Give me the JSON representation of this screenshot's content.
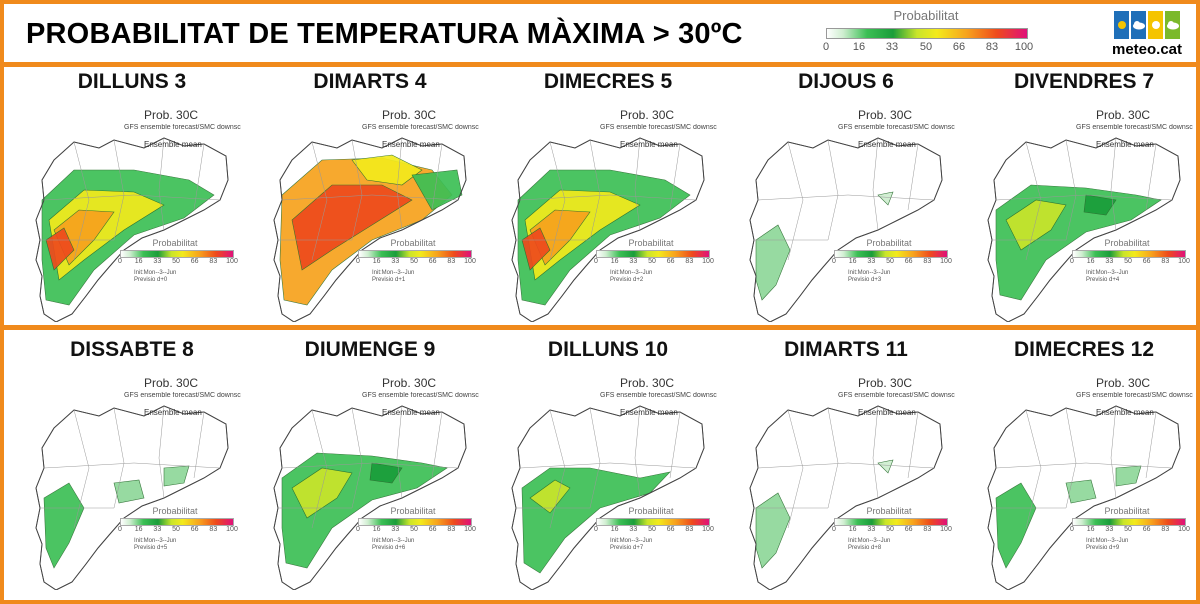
{
  "title": "PROBABILITAT DE TEMPERATURA MÀXIMA > 30ºC",
  "legend": {
    "title": "Probabilitat",
    "ticks": [
      "0",
      "16",
      "33",
      "50",
      "66",
      "83",
      "100"
    ]
  },
  "brand": {
    "name": "meteo.cat",
    "icons": [
      "sun-icon",
      "cloud-icon",
      "sun-icon",
      "cloud-icon"
    ]
  },
  "colors": {
    "accent": "#f08a1c",
    "p0": "#ffffff",
    "p16": "#cfeed0",
    "p33": "#3cbf55",
    "p50": "#f3ea1c",
    "p66": "#f7a21d",
    "p83": "#ee4a1c",
    "p100": "#e0107a"
  },
  "map_text": {
    "title": "Prob. 30C",
    "subtitle": "GFS ensemble forecast/SMC downsc",
    "mean": "Ensemble mean",
    "legend_title": "Probabilitat",
    "init": "Init:Mon--3--Jun"
  },
  "panels": [
    {
      "day": "DILLUNS 3",
      "lead": "Previsio d+0",
      "level": "high"
    },
    {
      "day": "DIMARTS 4",
      "lead": "Previsio d+1",
      "level": "very-high"
    },
    {
      "day": "DIMECRES 5",
      "lead": "Previsio d+2",
      "level": "high"
    },
    {
      "day": "DIJOUS 6",
      "lead": "Previsio d+3",
      "level": "very-low"
    },
    {
      "day": "DIVENDRES 7",
      "lead": "Previsio d+4",
      "level": "medium"
    },
    {
      "day": "DISSABTE  8",
      "lead": "Previsio d+5",
      "level": "low"
    },
    {
      "day": "DIUMENGE 9",
      "lead": "Previsio d+6",
      "level": "medium"
    },
    {
      "day": "DILLUNS 10",
      "lead": "Previsio d+7",
      "level": "medium-low"
    },
    {
      "day": "DIMARTS 11",
      "lead": "Previsio d+8",
      "level": "very-low"
    },
    {
      "day": "DIMECRES 12",
      "lead": "Previsio d+9",
      "level": "low"
    }
  ]
}
